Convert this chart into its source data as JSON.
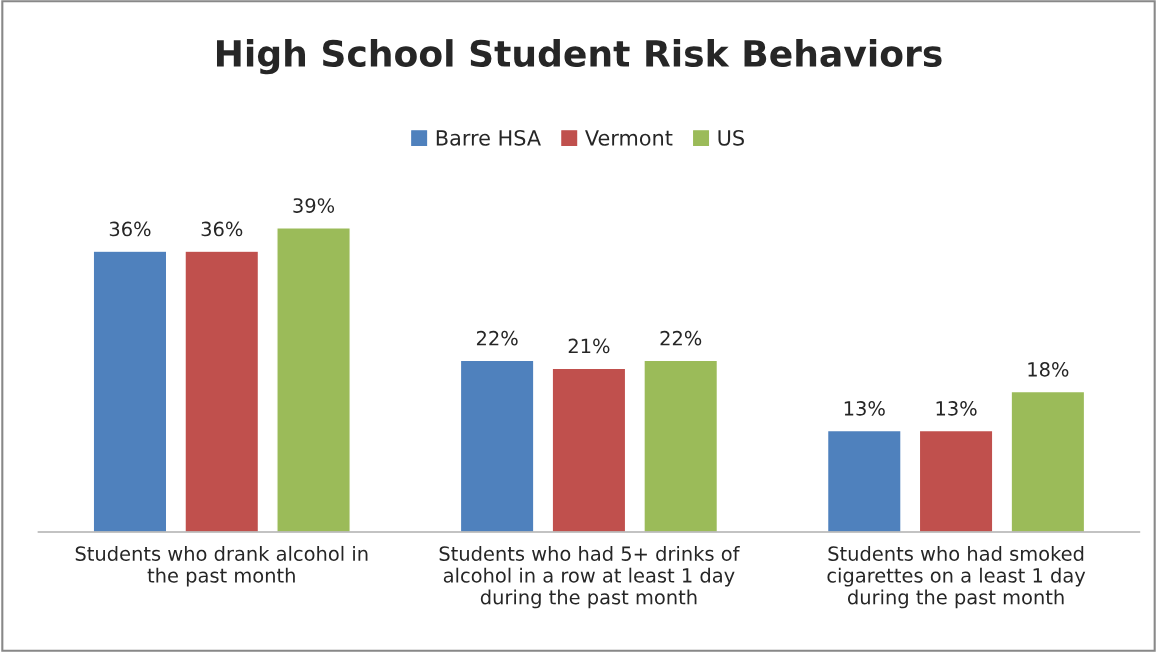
{
  "chart_data": {
    "type": "bar",
    "title": "High School Student Risk Behaviors",
    "categories": [
      "Students who drank alcohol in the past month",
      "Students who had 5+ drinks of alcohol in a row at least 1 day during the past month",
      "Students who had smoked cigarettes on a least 1 day during the past month"
    ],
    "series": [
      {
        "name": "Barre HSA",
        "color": "#4f81bd",
        "values": [
          36,
          22,
          13
        ],
        "value_labels": [
          "36%",
          "22%",
          "13%"
        ]
      },
      {
        "name": "Vermont",
        "color": "#c0504d",
        "values": [
          36,
          21,
          13
        ],
        "value_labels": [
          "36%",
          "21%",
          "13%"
        ]
      },
      {
        "name": "US",
        "color": "#9bbb59",
        "values": [
          39,
          22,
          18
        ],
        "value_labels": [
          "39%",
          "22%",
          "18%"
        ]
      }
    ],
    "legend": "top",
    "grid": false,
    "tick_labels": "x"
  }
}
